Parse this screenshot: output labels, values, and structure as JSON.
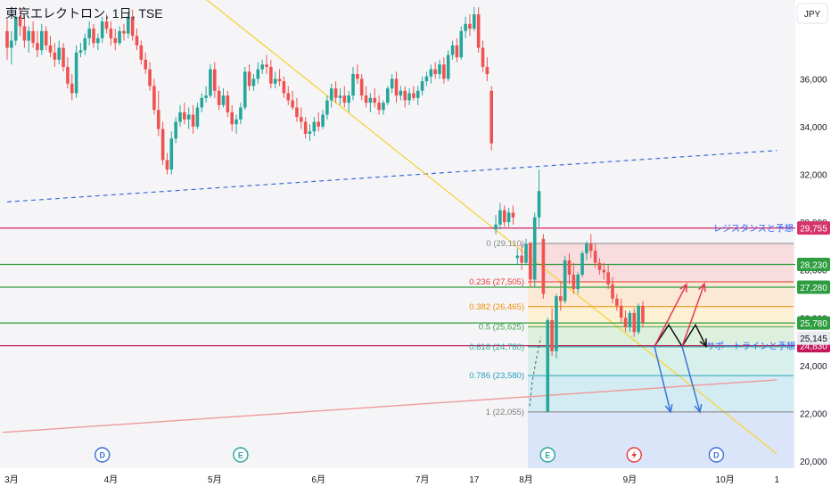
{
  "header": {
    "title": "東京エレクトロン, 1日, TSE"
  },
  "currency": "JPY",
  "chart_data": {
    "type": "candlestick",
    "title": "東京エレクトロン, 1日, TSE",
    "y_axis": {
      "range": [
        19700,
        39300
      ],
      "position": "right",
      "ticks": [
        20000,
        22000,
        24000,
        26000,
        28000,
        30000,
        32000,
        34000,
        36000
      ],
      "unit": "JPY"
    },
    "x_axis": {
      "labels": [
        {
          "label": "3月",
          "index": 1
        },
        {
          "label": "4月",
          "index": 24
        },
        {
          "label": "5月",
          "index": 48
        },
        {
          "label": "6月",
          "index": 72
        },
        {
          "label": "7月",
          "index": 96
        },
        {
          "label": "17",
          "index": 108
        },
        {
          "label": "8月",
          "index": 120
        },
        {
          "label": "9月",
          "index": 144
        },
        {
          "label": "10月",
          "index": 166
        },
        {
          "label": "1",
          "index": 178
        }
      ]
    },
    "candles": [
      [
        38000,
        38500,
        36800,
        37300
      ],
      [
        37300,
        38000,
        36600,
        37600
      ],
      [
        37600,
        39000,
        37400,
        38600
      ],
      [
        38600,
        39000,
        37800,
        38200
      ],
      [
        38200,
        38600,
        37300,
        37600
      ],
      [
        37600,
        38200,
        37100,
        38000
      ],
      [
        38000,
        38400,
        37300,
        37500
      ],
      [
        37500,
        38000,
        36900,
        37200
      ],
      [
        37200,
        38300,
        37000,
        38000
      ],
      [
        38000,
        38200,
        37200,
        37400
      ],
      [
        37400,
        37800,
        36900,
        37100
      ],
      [
        37100,
        37500,
        36500,
        36800
      ],
      [
        36800,
        37600,
        36600,
        37300
      ],
      [
        37300,
        37500,
        36300,
        36500
      ],
      [
        36500,
        36900,
        35600,
        35800
      ],
      [
        35800,
        36200,
        35100,
        35400
      ],
      [
        35400,
        37400,
        35200,
        37100
      ],
      [
        37100,
        37500,
        36900,
        37200
      ],
      [
        37200,
        37900,
        37000,
        37700
      ],
      [
        37700,
        38400,
        37400,
        38100
      ],
      [
        38100,
        38300,
        37300,
        37500
      ],
      [
        37500,
        37900,
        37200,
        37700
      ],
      [
        37700,
        38600,
        37500,
        38400
      ],
      [
        38400,
        38700,
        37900,
        38100
      ],
      [
        38100,
        38400,
        37400,
        37700
      ],
      [
        37700,
        38100,
        37200,
        37500
      ],
      [
        37500,
        38200,
        37400,
        38000
      ],
      [
        38000,
        38300,
        37600,
        37900
      ],
      [
        37900,
        38800,
        37700,
        38600
      ],
      [
        38600,
        38900,
        37600,
        37800
      ],
      [
        37800,
        38100,
        37200,
        37400
      ],
      [
        37400,
        37600,
        36600,
        36800
      ],
      [
        36800,
        37100,
        36200,
        36400
      ],
      [
        36400,
        36700,
        35500,
        35700
      ],
      [
        35700,
        36000,
        34500,
        34700
      ],
      [
        34700,
        35500,
        33600,
        33900
      ],
      [
        33900,
        34200,
        32400,
        32600
      ],
      [
        32600,
        32900,
        32000,
        32200
      ],
      [
        32200,
        33800,
        32000,
        33500
      ],
      [
        33500,
        34400,
        33300,
        34200
      ],
      [
        34200,
        34900,
        34000,
        34600
      ],
      [
        34600,
        35000,
        34100,
        34300
      ],
      [
        34300,
        34800,
        33900,
        34500
      ],
      [
        34500,
        34900,
        33700,
        34000
      ],
      [
        34000,
        35000,
        33900,
        34800
      ],
      [
        34800,
        35400,
        34600,
        35200
      ],
      [
        35200,
        35700,
        35000,
        35300
      ],
      [
        35300,
        36600,
        35200,
        36400
      ],
      [
        36400,
        36700,
        35200,
        35500
      ],
      [
        35500,
        35700,
        34700,
        34900
      ],
      [
        34900,
        35600,
        34800,
        35300
      ],
      [
        35300,
        35500,
        34400,
        34600
      ],
      [
        34600,
        34900,
        33800,
        34100
      ],
      [
        34100,
        34500,
        33700,
        34300
      ],
      [
        34300,
        35000,
        34100,
        34800
      ],
      [
        34800,
        36500,
        34700,
        36300
      ],
      [
        36300,
        36600,
        35500,
        35700
      ],
      [
        35700,
        36200,
        35500,
        36000
      ],
      [
        36000,
        36700,
        35800,
        36400
      ],
      [
        36400,
        36800,
        36200,
        36600
      ],
      [
        36600,
        37000,
        36200,
        36500
      ],
      [
        36500,
        36800,
        35600,
        35800
      ],
      [
        35800,
        36300,
        35600,
        36000
      ],
      [
        36000,
        36400,
        35700,
        35900
      ],
      [
        35900,
        36100,
        35200,
        35400
      ],
      [
        35400,
        35700,
        34900,
        35100
      ],
      [
        35100,
        35500,
        34700,
        34800
      ],
      [
        34800,
        35200,
        34200,
        34400
      ],
      [
        34400,
        34800,
        33900,
        34200
      ],
      [
        34200,
        34400,
        33500,
        33700
      ],
      [
        33700,
        34100,
        33400,
        33800
      ],
      [
        33800,
        34400,
        33600,
        34200
      ],
      [
        34200,
        34600,
        33800,
        34000
      ],
      [
        34000,
        34700,
        33900,
        34500
      ],
      [
        34500,
        35300,
        34300,
        35100
      ],
      [
        35100,
        35800,
        34800,
        35600
      ],
      [
        35600,
        35900,
        35000,
        35200
      ],
      [
        35200,
        35600,
        34900,
        35300
      ],
      [
        35300,
        35700,
        34800,
        35000
      ],
      [
        35000,
        35500,
        34600,
        35300
      ],
      [
        35300,
        36500,
        35100,
        36200
      ],
      [
        36200,
        36600,
        35800,
        36000
      ],
      [
        36000,
        36200,
        35100,
        35300
      ],
      [
        35300,
        35700,
        34800,
        35000
      ],
      [
        35000,
        35400,
        34600,
        35200
      ],
      [
        35200,
        35600,
        34800,
        35000
      ],
      [
        35000,
        35300,
        34500,
        34700
      ],
      [
        34700,
        35100,
        34500,
        35000
      ],
      [
        35000,
        35700,
        34900,
        35600
      ],
      [
        35600,
        36200,
        35400,
        36000
      ],
      [
        36000,
        36300,
        35000,
        35300
      ],
      [
        35300,
        35700,
        35100,
        35500
      ],
      [
        35500,
        35700,
        34800,
        35100
      ],
      [
        35100,
        35600,
        34900,
        35400
      ],
      [
        35400,
        35700,
        35100,
        35200
      ],
      [
        35200,
        35700,
        34900,
        35500
      ],
      [
        35500,
        36100,
        35300,
        35900
      ],
      [
        35900,
        36300,
        35700,
        36100
      ],
      [
        36100,
        36600,
        35800,
        36400
      ],
      [
        36400,
        36700,
        36000,
        36200
      ],
      [
        36200,
        36800,
        36000,
        36600
      ],
      [
        36600,
        36900,
        35800,
        36000
      ],
      [
        36000,
        37200,
        35900,
        37000
      ],
      [
        37000,
        37600,
        36800,
        37400
      ],
      [
        37400,
        37700,
        36700,
        36900
      ],
      [
        36900,
        38200,
        36800,
        38000
      ],
      [
        38000,
        38600,
        37700,
        38300
      ],
      [
        38300,
        38700,
        37800,
        38100
      ],
      [
        38100,
        39000,
        38000,
        38700
      ],
      [
        38700,
        39000,
        37100,
        37300
      ],
      [
        37300,
        37600,
        36300,
        36500
      ],
      [
        36500,
        36900,
        35900,
        36200
      ],
      [
        35500,
        35700,
        33000,
        33300
      ],
      [
        29700,
        30300,
        29500,
        29900
      ],
      [
        29900,
        30800,
        29700,
        30500
      ],
      [
        30500,
        30700,
        29800,
        30000
      ],
      [
        30000,
        30600,
        29800,
        30400
      ],
      [
        30400,
        30700,
        29900,
        30200
      ],
      [
        28500,
        28900,
        28200,
        28600
      ],
      [
        28600,
        29100,
        28000,
        28300
      ],
      [
        28300,
        29300,
        28200,
        29100
      ],
      [
        29100,
        29200,
        27300,
        27600
      ],
      [
        27600,
        30400,
        27300,
        30200
      ],
      [
        30200,
        32200,
        29800,
        31300
      ],
      [
        29300,
        29500,
        26800,
        27000
      ],
      [
        22055,
        26000,
        22055,
        25900
      ],
      [
        25900,
        26400,
        24400,
        24600
      ],
      [
        24600,
        27000,
        24300,
        26900
      ],
      [
        26900,
        27500,
        26300,
        26700
      ],
      [
        26700,
        28600,
        26600,
        28400
      ],
      [
        28400,
        28700,
        27400,
        27800
      ],
      [
        27800,
        28300,
        27000,
        27200
      ],
      [
        27200,
        27900,
        27000,
        27800
      ],
      [
        27800,
        28800,
        27700,
        28700
      ],
      [
        28700,
        29200,
        28400,
        29100
      ],
      [
        29100,
        29500,
        28500,
        28800
      ],
      [
        28800,
        29100,
        28100,
        28300
      ],
      [
        28300,
        28500,
        27800,
        28000
      ],
      [
        28000,
        28300,
        27600,
        27900
      ],
      [
        27900,
        28200,
        27200,
        27400
      ],
      [
        27400,
        27700,
        26600,
        26800
      ],
      [
        26800,
        27000,
        26300,
        26500
      ],
      [
        26500,
        26800,
        25800,
        26000
      ],
      [
        26000,
        26300,
        25400,
        25600
      ],
      [
        25600,
        26300,
        25400,
        26200
      ],
      [
        26200,
        26400,
        25200,
        25400
      ],
      [
        25400,
        26600,
        25300,
        26500
      ],
      [
        26500,
        26700,
        25600,
        25800
      ]
    ],
    "horizontal_levels": [
      {
        "price": 29755,
        "label": "レジスタンスと予想",
        "tag": "29,755",
        "color": "#d6336c"
      },
      {
        "price": 28230,
        "tag": "28,230",
        "color": "#2e9d3f"
      },
      {
        "price": 27280,
        "tag": "27,280",
        "color": "#2e9d3f"
      },
      {
        "price": 25780,
        "tag": "25,780",
        "color": "#2e9d3f"
      },
      {
        "price": 24830,
        "label": "サポートラインと予想",
        "tag": "24,830",
        "color": "#c2185b"
      }
    ],
    "current_price": {
      "value": 25145,
      "tag": "25,145"
    },
    "fibonacci": [
      {
        "label": "0 (29,110)",
        "price": 29110,
        "color": "#888888",
        "fill": "#f8d7d9"
      },
      {
        "label": "0.236 (27,505)",
        "price": 27505,
        "color": "#e53935",
        "fill": "#fde6cf"
      },
      {
        "label": "0.382 (26,465)",
        "price": 26465,
        "color": "#ef8c00",
        "fill": "#fdf0cf"
      },
      {
        "label": "0.5 (25,625)",
        "price": 25625,
        "color": "#43a047",
        "fill": "#d8efd9"
      },
      {
        "label": "0.618 (24,780)",
        "price": 24780,
        "color": "#26a69a",
        "fill": "#d2eee9"
      },
      {
        "label": "0.786 (23,580)",
        "price": 23580,
        "color": "#26a0b8",
        "fill": "#cdeaf2"
      },
      {
        "label": "1 (22,055)",
        "price": 22055,
        "color": "#7d7d7d",
        "fill": "#e6e6e6"
      }
    ],
    "trendlines": [
      {
        "from": [
          0,
          30850
        ],
        "to": [
          178,
          33000
        ],
        "style": "dashed",
        "color": "#3b6fd4"
      },
      {
        "from": [
          40,
          40200
        ],
        "to": [
          178,
          20300
        ],
        "style": "solid",
        "color": "#f5d547"
      },
      {
        "from": [
          -1,
          21200
        ],
        "to": [
          178,
          23400
        ],
        "style": "solid",
        "color": "#ee9a9a"
      }
    ],
    "event_markers": [
      {
        "index": 22,
        "type": "D",
        "color": "#3b6fd4"
      },
      {
        "index": 54,
        "type": "E",
        "color": "#26a69a"
      },
      {
        "index": 125,
        "type": "E",
        "color": "#26a69a"
      },
      {
        "index": 145,
        "type": "lightning",
        "color": "#e53935"
      },
      {
        "index": 164,
        "type": "D",
        "color": "#3b6fd4"
      }
    ],
    "colors": {
      "up": "#26a69a",
      "down": "#ef5350",
      "background": "#f5f5f8"
    }
  }
}
